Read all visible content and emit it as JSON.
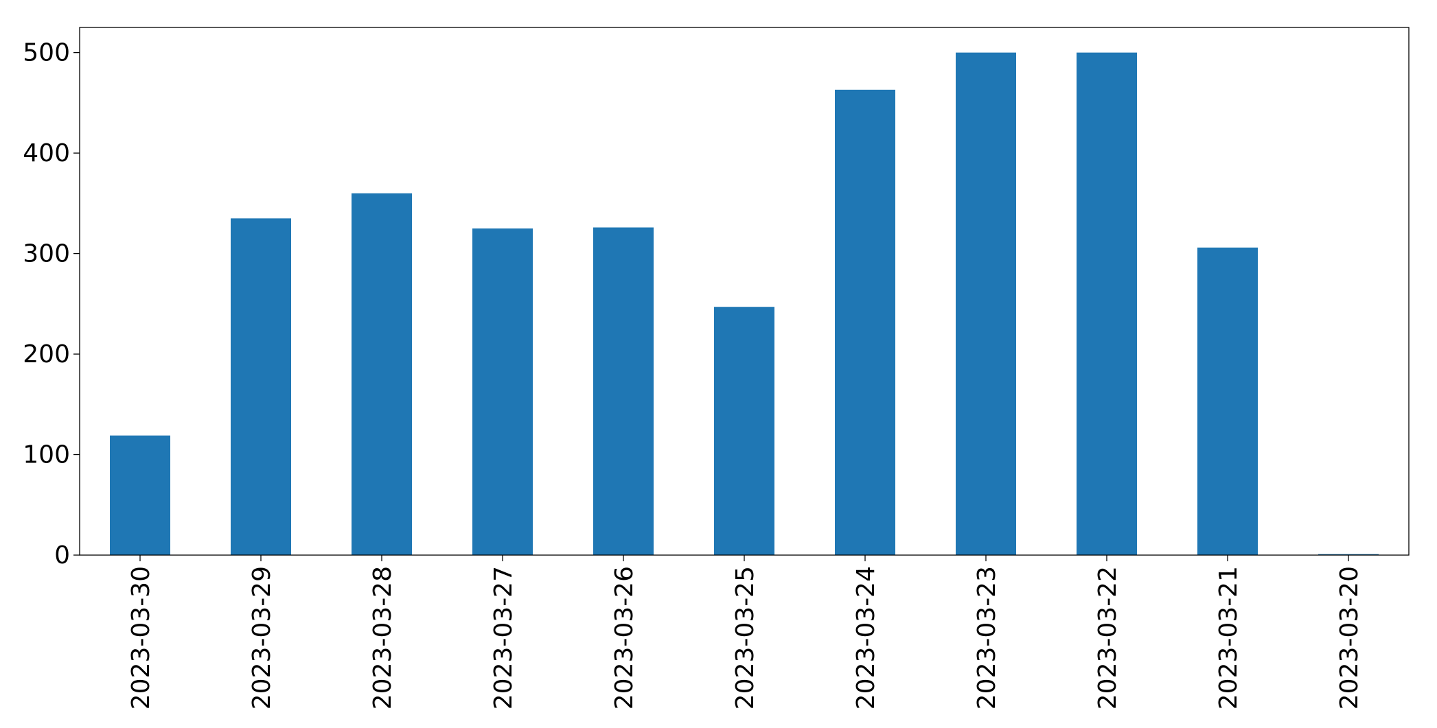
{
  "chart_data": {
    "type": "bar",
    "categories": [
      "2023-03-30",
      "2023-03-29",
      "2023-03-28",
      "2023-03-27",
      "2023-03-26",
      "2023-03-25",
      "2023-03-24",
      "2023-03-23",
      "2023-03-22",
      "2023-03-21",
      "2023-03-20"
    ],
    "values": [
      119,
      335,
      360,
      325,
      326,
      247,
      463,
      500,
      500,
      306,
      1
    ],
    "color": "#1f77b4",
    "ylim": [
      0,
      525
    ],
    "yticks": [
      0,
      100,
      200,
      300,
      400,
      500
    ],
    "grid": false
  }
}
